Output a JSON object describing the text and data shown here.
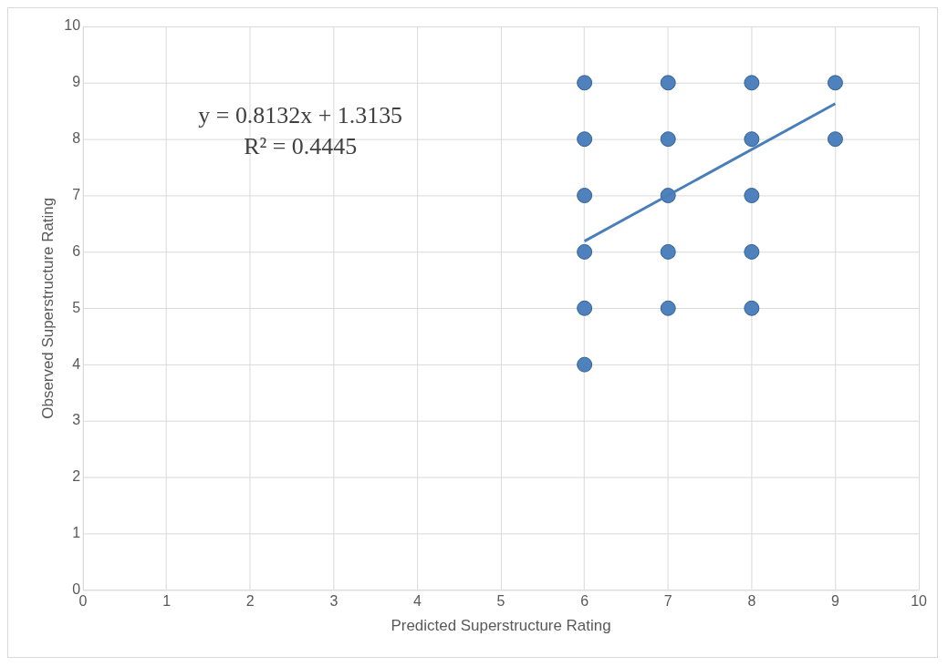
{
  "chart_data": {
    "type": "scatter",
    "xlabel": "Predicted Superstructure Rating",
    "ylabel": "Observed Superstructure Rating",
    "xlim": [
      0,
      10
    ],
    "ylim": [
      0,
      10
    ],
    "xticks": [
      0,
      1,
      2,
      3,
      4,
      5,
      6,
      7,
      8,
      9,
      10
    ],
    "yticks": [
      0,
      1,
      2,
      3,
      4,
      5,
      6,
      7,
      8,
      9,
      10
    ],
    "grid": true,
    "legend": false,
    "marker": "circle",
    "annotations": [
      "y = 0.8132x + 1.3135",
      "R² = 0.4445"
    ],
    "series": [
      {
        "color": "#4f81bd",
        "x": [
          6,
          6,
          6,
          6,
          6,
          6,
          7,
          7,
          7,
          7,
          7,
          8,
          8,
          8,
          8,
          8,
          9,
          9
        ],
        "values": [
          9,
          8,
          7,
          6,
          5,
          4,
          9,
          8,
          7,
          6,
          5,
          9,
          8,
          7,
          6,
          5,
          9,
          8
        ]
      },
      {
        "type": "line",
        "color": "#4a7ebb",
        "x": [
          6,
          9
        ],
        "values": [
          6.19,
          8.63
        ],
        "marker": "none"
      }
    ]
  }
}
